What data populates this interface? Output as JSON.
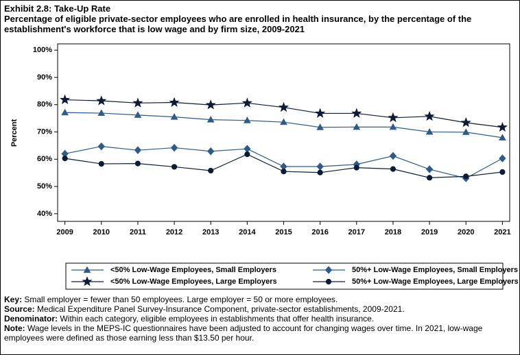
{
  "chart_data": {
    "type": "line",
    "title": "Exhibit 2.8: Take-Up Rate",
    "subtitle": "Percentage of eligible private-sector employees who are enrolled in health insurance, by the percentage of the establishment's workforce that is low wage and by firm size, 2009-2021",
    "ylabel": "Percent",
    "x": [
      2009,
      2010,
      2011,
      2012,
      2013,
      2014,
      2015,
      2016,
      2017,
      2018,
      2019,
      2020,
      2021
    ],
    "xlim": [
      2008.8,
      2021.2
    ],
    "xticks": [
      2009,
      2010,
      2011,
      2012,
      2013,
      2014,
      2015,
      2016,
      2017,
      2018,
      2019,
      2020,
      2021
    ],
    "ylim": [
      37.2,
      102.3
    ],
    "yticks": [
      {
        "value": 40,
        "label": "40%"
      },
      {
        "value": 50,
        "label": "50%"
      },
      {
        "value": 60,
        "label": "60%"
      },
      {
        "value": 70,
        "label": "70%"
      },
      {
        "value": 80,
        "label": "80%"
      },
      {
        "value": 90,
        "label": "90%"
      },
      {
        "value": 100,
        "label": "100%"
      }
    ],
    "grid": false,
    "series": [
      {
        "name": "<50% Low-Wage Employees, Small Employers",
        "color": "#2e5c8a",
        "marker": "triangle",
        "values": [
          77.1,
          76.9,
          76.2,
          75.5,
          74.5,
          74.2,
          73.6,
          71.7,
          71.8,
          71.8,
          70.0,
          69.9,
          67.9
        ]
      },
      {
        "name": "50%+ Low-Wage Employees, Small Employers",
        "color": "#2e5c8a",
        "marker": "diamond",
        "values": [
          62.0,
          64.7,
          63.3,
          64.2,
          62.9,
          63.8,
          57.3,
          57.3,
          58.1,
          61.2,
          56.3,
          53.0,
          60.3
        ]
      },
      {
        "name": "<50% Low-Wage Employees, Large Employers",
        "color": "#0c1b36",
        "marker": "star",
        "values": [
          81.8,
          81.4,
          80.6,
          80.8,
          79.9,
          80.6,
          79.0,
          76.8,
          76.8,
          75.2,
          75.7,
          73.4,
          71.7
        ]
      },
      {
        "name": "50%+ Low-Wage Employees, Large Employers",
        "color": "#0c1b36",
        "marker": "circle",
        "values": [
          60.3,
          58.3,
          58.4,
          57.2,
          55.8,
          61.8,
          55.5,
          55.1,
          56.9,
          56.4,
          53.2,
          53.7,
          55.3
        ]
      }
    ],
    "notes": [
      {
        "label": "Key:",
        "text": "Small employer = fewer than 50 employees. Large employer = 50 or more employees."
      },
      {
        "label": "Source:",
        "text": "Medical Expenditure Panel Survey-Insurance Component, private-sector establishments, 2009-2021."
      },
      {
        "label": "Denominator:",
        "text": "Within each category, eligible employees in establishments that offer health insurance."
      },
      {
        "label": "Note:",
        "text": "Wage levels in the MEPS-IC questionnaires have been adjusted to account for changing wages over time. In 2021, low-wage employees were defined as those earning less than $13.50 per hour."
      }
    ]
  }
}
